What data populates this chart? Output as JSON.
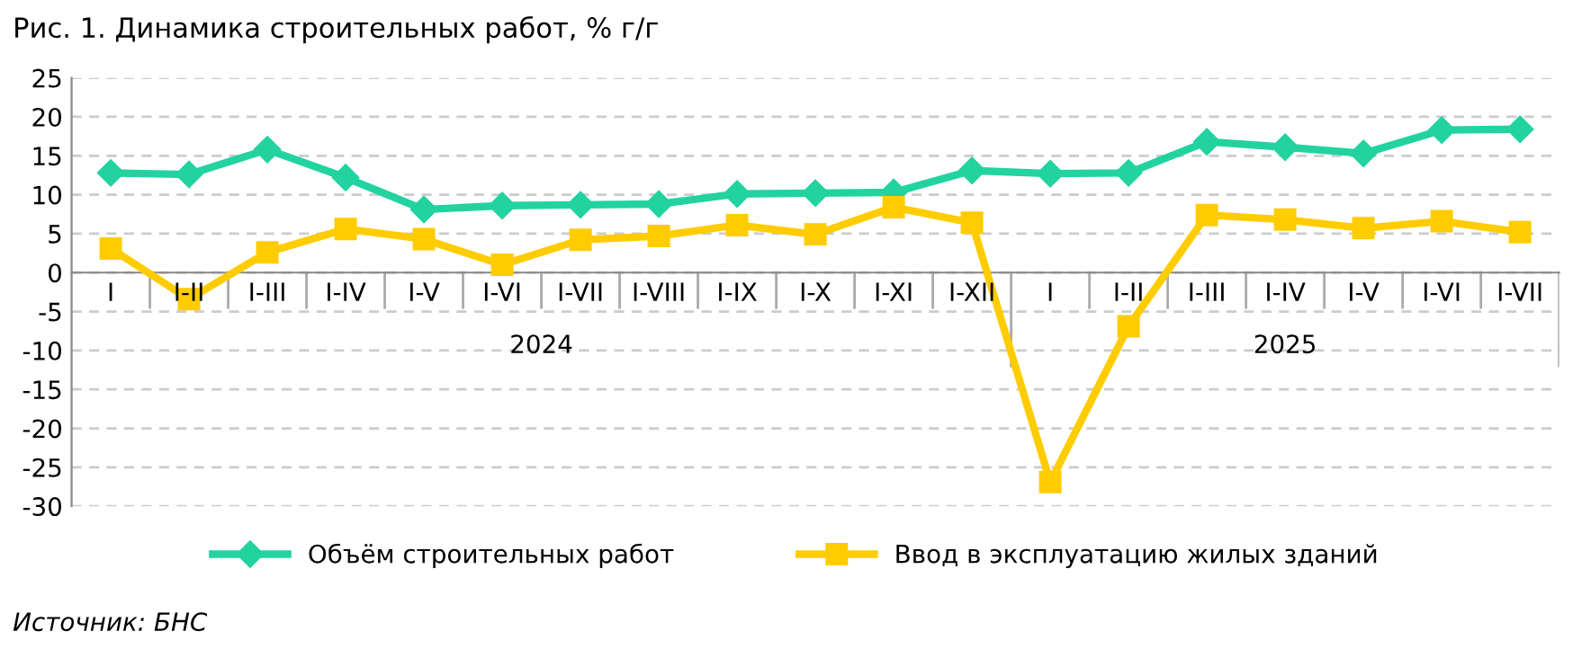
{
  "chart_data": {
    "type": "line",
    "title": "Рис. 1. Динамика строительных работ, % г/г",
    "categories": [
      "I",
      "I-II",
      "I-III",
      "I-IV",
      "I-V",
      "I-VI",
      "I-VII",
      "I-VIII",
      "I-IX",
      "I-X",
      "I-XI",
      "I-XII",
      "I",
      "I-II",
      "I-III",
      "I-IV",
      "I-V",
      "I-VI",
      "I-VII"
    ],
    "series": [
      {
        "name": "Объём строительных работ",
        "color": "#22d3a0",
        "marker": "diamond",
        "values": [
          12.8,
          12.6,
          15.8,
          12.2,
          8.1,
          8.6,
          8.7,
          8.8,
          10.1,
          10.2,
          10.3,
          13.1,
          12.7,
          12.8,
          16.8,
          16.1,
          15.3,
          18.3,
          18.4
        ]
      },
      {
        "name": "Ввод в эксплуатацию жилых зданий",
        "color": "#ffcc00",
        "marker": "square",
        "values": [
          3.1,
          -3.4,
          2.6,
          5.6,
          4.3,
          1.0,
          4.2,
          4.7,
          6.1,
          4.9,
          8.4,
          6.4,
          -26.9,
          -6.9,
          7.4,
          6.8,
          5.7,
          6.6,
          5.2
        ]
      }
    ],
    "ylim": [
      -30,
      25
    ],
    "yticks": [
      -30,
      -25,
      -20,
      -15,
      -10,
      -5,
      0,
      5,
      10,
      15,
      20,
      25
    ],
    "grid": "y",
    "legend": "bottom",
    "line_style": "solid",
    "annotations": [
      "2024",
      "2025",
      "Источник: БНС"
    ]
  }
}
